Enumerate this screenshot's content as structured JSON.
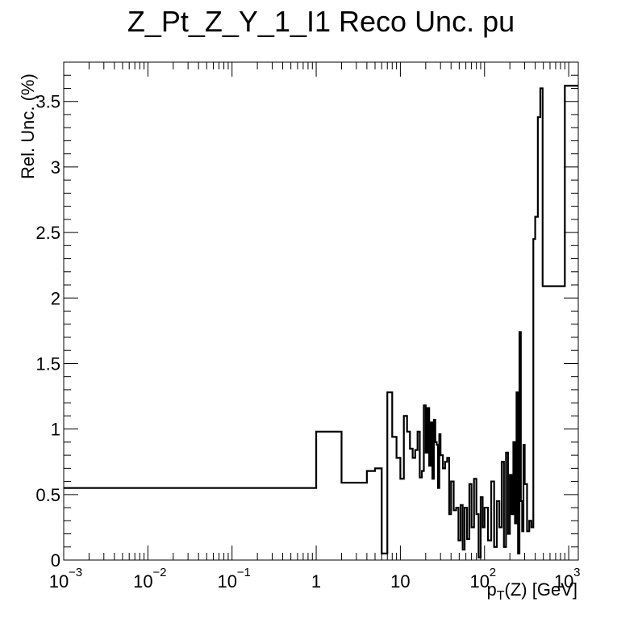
{
  "chart_data": {
    "type": "line",
    "title": "Z_Pt_Z_Y_1_I1 Reco Unc. pu",
    "ylabel": "Rel. Unc. (%)",
    "xlabel": "p_T(Z) [GeV]",
    "xlabel_parts": {
      "main": "p",
      "sub": "T",
      "rest": "(Z) [GeV]"
    },
    "xscale": "log",
    "xlim": [
      0.001,
      1300
    ],
    "ylim": [
      0,
      3.8
    ],
    "xticks": [
      {
        "value": 0.001,
        "base": "10",
        "exp": "−3"
      },
      {
        "value": 0.01,
        "base": "10",
        "exp": "−2"
      },
      {
        "value": 0.1,
        "base": "10",
        "exp": "−1"
      },
      {
        "value": 1,
        "base": "1",
        "exp": ""
      },
      {
        "value": 10,
        "base": "10",
        "exp": ""
      },
      {
        "value": 100,
        "base": "10",
        "exp": "2"
      },
      {
        "value": 1000,
        "base": "10",
        "exp": "3"
      }
    ],
    "yticks": [
      "0",
      "0.5",
      "1",
      "1.5",
      "2",
      "2.5",
      "3",
      "3.5"
    ],
    "grid": false,
    "series": [
      {
        "style": "step",
        "bin_edges": [
          0.001,
          1,
          2,
          4,
          5,
          6,
          7,
          8,
          9,
          10,
          11,
          12,
          13,
          14,
          15,
          16,
          17,
          18,
          19,
          20,
          21,
          22,
          23,
          24,
          25,
          26,
          27,
          28,
          29,
          30,
          32,
          34,
          36,
          38,
          40,
          43,
          46,
          49,
          52,
          55,
          58,
          62,
          66,
          70,
          75,
          80,
          85,
          90,
          95,
          100,
          110,
          120,
          130,
          140,
          150,
          160,
          170,
          180,
          190,
          200,
          210,
          220,
          230,
          240,
          250,
          260,
          270,
          280,
          290,
          300,
          320,
          340,
          360,
          380,
          400,
          430,
          460,
          490,
          520,
          550,
          580,
          620,
          900,
          1300
        ],
        "values": [
          0.55,
          0.98,
          0.59,
          0.68,
          0.7,
          0.05,
          1.28,
          0.94,
          0.78,
          0.62,
          1.1,
          0.98,
          0.85,
          0.78,
          0.84,
          0.98,
          0.63,
          0.68,
          1.18,
          0.82,
          1.16,
          0.72,
          1.05,
          0.62,
          1.07,
          0.9,
          0.88,
          0.55,
          0.96,
          0.8,
          0.7,
          0.75,
          0.78,
          0.35,
          0.6,
          0.38,
          0.4,
          0.15,
          0.42,
          0.08,
          0.4,
          0.16,
          0.58,
          0.25,
          0.62,
          0.35,
          0.02,
          0.48,
          0.25,
          0.4,
          0.15,
          0.6,
          0.1,
          0.45,
          0.25,
          0.75,
          0.1,
          0.82,
          0.2,
          0.65,
          0.35,
          0.9,
          0.28,
          1.28,
          0.05,
          1.74,
          0.45,
          0.22,
          0.88,
          0.58,
          0.22,
          0.3,
          0.25,
          2.45,
          2.62,
          3.38,
          3.6,
          2.09,
          2.09,
          2.09,
          2.09,
          2.09,
          3.62
        ]
      }
    ]
  }
}
